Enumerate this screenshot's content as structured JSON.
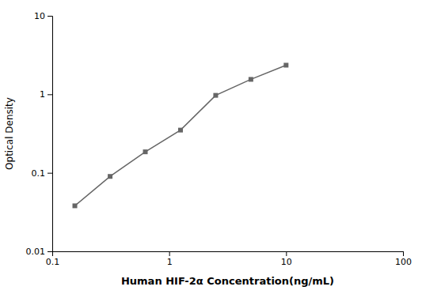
{
  "chart_data": {
    "type": "line",
    "xlabel": "Human HIF-2α Concentration(ng/mL)",
    "ylabel": "Optical Density",
    "x": [
      0.156,
      0.3125,
      0.625,
      1.25,
      2.5,
      5.0,
      10.0
    ],
    "values": [
      0.038,
      0.09,
      0.185,
      0.35,
      0.97,
      1.55,
      2.35
    ],
    "xlim": [
      0.1,
      100
    ],
    "ylim": [
      0.01,
      10
    ],
    "xticks": [
      0.1,
      1,
      10,
      100
    ],
    "yticks": [
      0.01,
      0.1,
      1,
      10
    ],
    "log": true,
    "grid": false,
    "color": "#666666",
    "marker": "square"
  }
}
